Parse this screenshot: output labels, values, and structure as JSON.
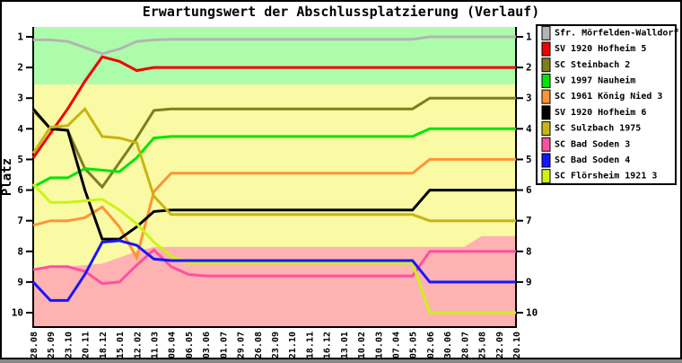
{
  "chart_data": {
    "type": "line",
    "title": "Erwartungswert der Abschlussplatzierung (Verlauf)",
    "ylabel": "Platz",
    "y_axis": {
      "min": 1,
      "max": 10,
      "inverted": true
    },
    "legend_position": "top-right",
    "categories": [
      "28.08",
      "25.09",
      "23.10",
      "20.11",
      "18.12",
      "15.01",
      "12.02",
      "11.03",
      "08.04",
      "06.05",
      "03.06",
      "01.07",
      "29.07",
      "26.08",
      "23.09",
      "21.10",
      "18.11",
      "16.12",
      "13.01",
      "10.02",
      "10.03",
      "07.04",
      "05.05",
      "02.06",
      "30.06",
      "28.07",
      "25.08",
      "22.09",
      "20.10"
    ],
    "series": [
      {
        "name": "Sfr. Mörfelden-Walldorf",
        "color": "#B4B4B4",
        "draw": 1,
        "values": [
          1.1,
          1.1,
          1.15,
          1.35,
          1.55,
          1.4,
          1.15,
          1.1,
          1.08,
          1.08,
          1.08,
          1.08,
          1.08,
          1.08,
          1.08,
          1.08,
          1.08,
          1.08,
          1.08,
          1.08,
          1.08,
          1.08,
          1.08,
          1,
          1,
          1,
          1,
          1,
          1
        ]
      },
      {
        "name": "SV 1920 Hofheim 5",
        "color": "#F40000",
        "draw": 2,
        "values": [
          4.95,
          4.15,
          3.35,
          2.45,
          1.65,
          1.8,
          2.1,
          2,
          2,
          2,
          2,
          2,
          2,
          2,
          2,
          2,
          2,
          2,
          2,
          2,
          2,
          2,
          2,
          2,
          2,
          2,
          2,
          2,
          2
        ]
      },
      {
        "name": "SC Steinbach 2",
        "color": "#7E7E1E",
        "draw": 3,
        "values": [
          3.4,
          4,
          4.05,
          5.3,
          5.9,
          5.1,
          4.3,
          3.4,
          3.35,
          3.35,
          3.35,
          3.35,
          3.35,
          3.35,
          3.35,
          3.35,
          3.35,
          3.35,
          3.35,
          3.35,
          3.35,
          3.35,
          3.35,
          3,
          3,
          3,
          3,
          3,
          3
        ]
      },
      {
        "name": "SV 1997 Nauheim",
        "color": "#00E600",
        "draw": 4,
        "values": [
          5.9,
          5.6,
          5.6,
          5.3,
          5.35,
          5.4,
          4.95,
          4.3,
          4.25,
          4.25,
          4.25,
          4.25,
          4.25,
          4.25,
          4.25,
          4.25,
          4.25,
          4.25,
          4.25,
          4.25,
          4.25,
          4.25,
          4.25,
          4,
          4,
          4,
          4,
          4,
          4
        ]
      },
      {
        "name": "SC 1961 König Nied 3",
        "color": "#FF9435",
        "draw": 5,
        "values": [
          7.15,
          7,
          7,
          6.9,
          6.55,
          7.2,
          8.2,
          6.05,
          5.45,
          5.45,
          5.45,
          5.45,
          5.45,
          5.45,
          5.45,
          5.45,
          5.45,
          5.45,
          5.45,
          5.45,
          5.45,
          5.45,
          5.45,
          5,
          5,
          5,
          5,
          5,
          5
        ]
      },
      {
        "name": "SV 1920 Hofheim 6",
        "color": "#000000",
        "draw": 6,
        "values": [
          3.35,
          4,
          4.05,
          6,
          7.6,
          7.6,
          7.2,
          6.7,
          6.65,
          6.65,
          6.65,
          6.65,
          6.65,
          6.65,
          6.65,
          6.65,
          6.65,
          6.65,
          6.65,
          6.65,
          6.65,
          6.65,
          6.65,
          6,
          6,
          6,
          6,
          6,
          6
        ]
      },
      {
        "name": "SC Sulzbach 1975",
        "color": "#C8B414",
        "draw": 7,
        "values": [
          4.8,
          3.95,
          3.9,
          3.35,
          4.25,
          4.3,
          4.45,
          6.2,
          6.8,
          6.8,
          6.8,
          6.8,
          6.8,
          6.8,
          6.8,
          6.8,
          6.8,
          6.8,
          6.8,
          6.8,
          6.8,
          6.8,
          6.8,
          7,
          7,
          7,
          7,
          7,
          7
        ]
      },
      {
        "name": "SC Bad Soden 3",
        "color": "#FF50A0",
        "draw": 8,
        "values": [
          8.6,
          8.5,
          8.5,
          8.65,
          9.05,
          9,
          8.45,
          7.95,
          8.5,
          8.75,
          8.8,
          8.8,
          8.8,
          8.8,
          8.8,
          8.8,
          8.8,
          8.8,
          8.8,
          8.8,
          8.8,
          8.8,
          8.8,
          8,
          8,
          8,
          8,
          8,
          8
        ]
      },
      {
        "name": "SC Bad Soden 4",
        "color": "#1616FF",
        "draw": 10,
        "values": [
          9,
          9.6,
          9.6,
          8.75,
          7.7,
          7.65,
          7.8,
          8.25,
          8.3,
          8.3,
          8.3,
          8.3,
          8.3,
          8.3,
          8.3,
          8.3,
          8.3,
          8.3,
          8.3,
          8.3,
          8.3,
          8.3,
          8.3,
          9,
          9,
          9,
          9,
          9,
          9
        ]
      },
      {
        "name": "SC Flörsheim 1921 3",
        "color": "#CCF316",
        "draw": 9,
        "values": [
          5.8,
          6.4,
          6.4,
          6.35,
          6.3,
          6.65,
          7.1,
          7.7,
          8.15,
          8.38,
          8.38,
          8.38,
          8.38,
          8.38,
          8.38,
          8.38,
          8.38,
          8.38,
          8.38,
          8.38,
          8.38,
          8.38,
          8.38,
          10,
          10,
          10,
          10,
          10,
          10
        ]
      }
    ],
    "zones": {
      "promotion": {
        "color": "#ACFCAC",
        "from_place": 0.68,
        "to_place": 2.55
      },
      "middle": {
        "color": "#FAFAA5"
      },
      "relegation": {
        "color": "#FFB2B2",
        "boundary": [
          [
            0,
            8.6
          ],
          [
            2,
            8.5
          ],
          [
            4,
            8.4
          ],
          [
            5,
            8.2
          ],
          [
            6,
            8.0
          ],
          [
            7,
            7.85
          ],
          [
            25,
            7.85
          ],
          [
            26,
            7.5
          ],
          [
            28,
            7.5
          ]
        ]
      }
    }
  }
}
